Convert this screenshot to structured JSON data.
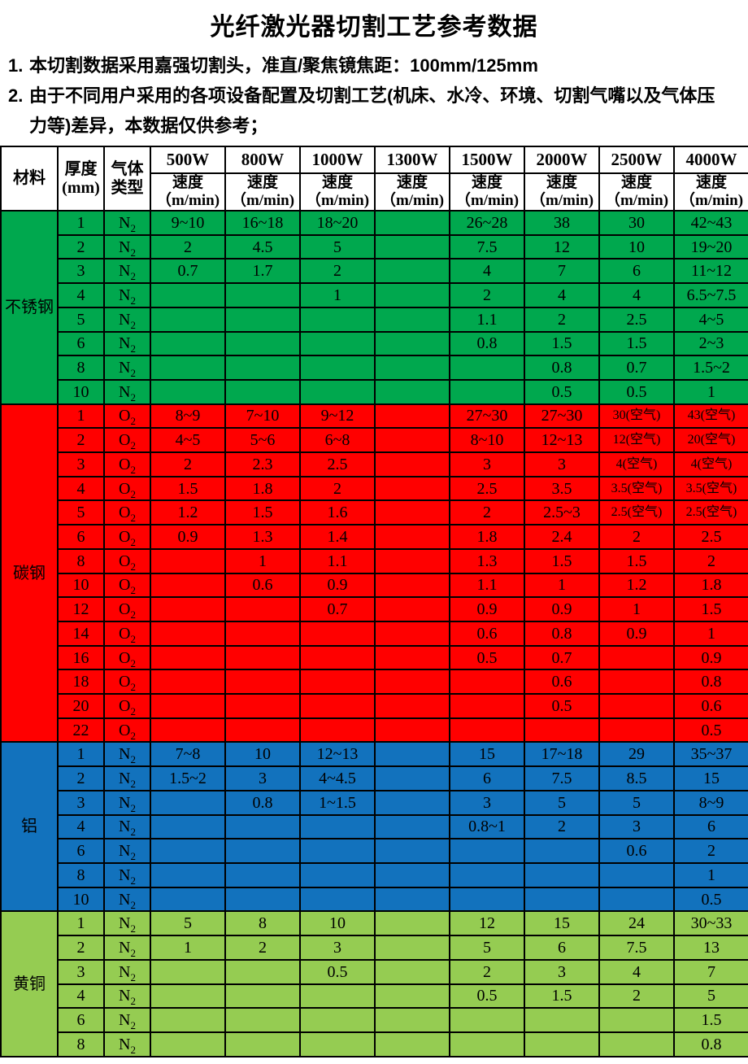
{
  "title": "光纤激光器切割工艺参考数据",
  "notes": [
    {
      "num": "1.",
      "lines": [
        "本切割数据采用嘉强切割头，准直/聚焦镜焦距：100mm/125mm"
      ]
    },
    {
      "num": "2.",
      "lines": [
        "由于不同用户采用的各项设备配置及切割工艺(机床、水冷、环境、切割气嘴以及气体压",
        "力等)差异，本数据仅供参考；"
      ]
    }
  ],
  "table": {
    "corner": {
      "material": "材料",
      "thickness_lines": [
        "厚度",
        "(mm)"
      ],
      "gas_lines": [
        "气体",
        "类型"
      ]
    },
    "powers": [
      "500W",
      "800W",
      "1000W",
      "1300W",
      "1500W",
      "2000W",
      "2500W",
      "4000W"
    ],
    "speed_label_lines": [
      "速度",
      "（m/min)"
    ],
    "section_colors": {
      "stainless": "#00A84E",
      "carbon": "#FF0000",
      "aluminum": "#1272BD",
      "brass": "#95CC52"
    },
    "sections": [
      {
        "material": "不锈钢",
        "color": "#00A84E",
        "gas": "N2",
        "rows": [
          {
            "thickness": "1",
            "values": [
              "9~10",
              "16~18",
              "18~20",
              "",
              "26~28",
              "38",
              "30",
              "42~43"
            ]
          },
          {
            "thickness": "2",
            "values": [
              "2",
              "4.5",
              "5",
              "",
              "7.5",
              "12",
              "10",
              "19~20"
            ]
          },
          {
            "thickness": "3",
            "values": [
              "0.7",
              "1.7",
              "2",
              "",
              "4",
              "7",
              "6",
              "11~12"
            ]
          },
          {
            "thickness": "4",
            "values": [
              "",
              "",
              "1",
              "",
              "2",
              "4",
              "4",
              "6.5~7.5"
            ]
          },
          {
            "thickness": "5",
            "values": [
              "",
              "",
              "",
              "",
              "1.1",
              "2",
              "2.5",
              "4~5"
            ]
          },
          {
            "thickness": "6",
            "values": [
              "",
              "",
              "",
              "",
              "0.8",
              "1.5",
              "1.5",
              "2~3"
            ]
          },
          {
            "thickness": "8",
            "values": [
              "",
              "",
              "",
              "",
              "",
              "0.8",
              "0.7",
              "1.5~2"
            ]
          },
          {
            "thickness": "10",
            "values": [
              "",
              "",
              "",
              "",
              "",
              "0.5",
              "0.5",
              "1"
            ]
          }
        ]
      },
      {
        "material": "碳钢",
        "color": "#FF0000",
        "gas": "O2",
        "rows": [
          {
            "thickness": "1",
            "values": [
              "8~9",
              "7~10",
              "9~12",
              "",
              "27~30",
              "27~30",
              "30(空气)",
              "43(空气)"
            ]
          },
          {
            "thickness": "2",
            "values": [
              "4~5",
              "5~6",
              "6~8",
              "",
              "8~10",
              "12~13",
              "12(空气)",
              "20(空气)"
            ]
          },
          {
            "thickness": "3",
            "values": [
              "2",
              "2.3",
              "2.5",
              "",
              "3",
              "3",
              "4(空气)",
              "4(空气)"
            ]
          },
          {
            "thickness": "4",
            "values": [
              "1.5",
              "1.8",
              "2",
              "",
              "2.5",
              "3.5",
              "3.5(空气)",
              "3.5(空气)"
            ]
          },
          {
            "thickness": "5",
            "values": [
              "1.2",
              "1.5",
              "1.6",
              "",
              "2",
              "2.5~3",
              "2.5(空气)",
              "2.5(空气)"
            ]
          },
          {
            "thickness": "6",
            "values": [
              "0.9",
              "1.3",
              "1.4",
              "",
              "1.8",
              "2.4",
              "2",
              "2.5"
            ]
          },
          {
            "thickness": "8",
            "values": [
              "",
              "1",
              "1.1",
              "",
              "1.3",
              "1.5",
              "1.5",
              "2"
            ]
          },
          {
            "thickness": "10",
            "values": [
              "",
              "0.6",
              "0.9",
              "",
              "1.1",
              "1",
              "1.2",
              "1.8"
            ]
          },
          {
            "thickness": "12",
            "values": [
              "",
              "",
              "0.7",
              "",
              "0.9",
              "0.9",
              "1",
              "1.5"
            ]
          },
          {
            "thickness": "14",
            "values": [
              "",
              "",
              "",
              "",
              "0.6",
              "0.8",
              "0.9",
              "1"
            ]
          },
          {
            "thickness": "16",
            "values": [
              "",
              "",
              "",
              "",
              "0.5",
              "0.7",
              "",
              "0.9"
            ]
          },
          {
            "thickness": "18",
            "values": [
              "",
              "",
              "",
              "",
              "",
              "0.6",
              "",
              "0.8"
            ]
          },
          {
            "thickness": "20",
            "values": [
              "",
              "",
              "",
              "",
              "",
              "0.5",
              "",
              "0.6"
            ]
          },
          {
            "thickness": "22",
            "values": [
              "",
              "",
              "",
              "",
              "",
              "",
              "",
              "0.5"
            ]
          }
        ]
      },
      {
        "material": "铝",
        "color": "#1272BD",
        "gas": "N2",
        "rows": [
          {
            "thickness": "1",
            "values": [
              "7~8",
              "10",
              "12~13",
              "",
              "15",
              "17~18",
              "29",
              "35~37"
            ]
          },
          {
            "thickness": "2",
            "values": [
              "1.5~2",
              "3",
              "4~4.5",
              "",
              "6",
              "7.5",
              "8.5",
              "15"
            ]
          },
          {
            "thickness": "3",
            "values": [
              "",
              "0.8",
              "1~1.5",
              "",
              "3",
              "5",
              "5",
              "8~9"
            ]
          },
          {
            "thickness": "4",
            "values": [
              "",
              "",
              "",
              "",
              "0.8~1",
              "2",
              "3",
              "6"
            ]
          },
          {
            "thickness": "6",
            "values": [
              "",
              "",
              "",
              "",
              "",
              "",
              "0.6",
              "2"
            ]
          },
          {
            "thickness": "8",
            "values": [
              "",
              "",
              "",
              "",
              "",
              "",
              "",
              "1"
            ]
          },
          {
            "thickness": "10",
            "values": [
              "",
              "",
              "",
              "",
              "",
              "",
              "",
              "0.5"
            ]
          }
        ]
      },
      {
        "material": "黄铜",
        "color": "#95CC52",
        "gas": "N2",
        "rows": [
          {
            "thickness": "1",
            "values": [
              "5",
              "8",
              "10",
              "",
              "12",
              "15",
              "24",
              "30~33"
            ]
          },
          {
            "thickness": "2",
            "values": [
              "1",
              "2",
              "3",
              "",
              "5",
              "6",
              "7.5",
              "13"
            ]
          },
          {
            "thickness": "3",
            "values": [
              "",
              "",
              "0.5",
              "",
              "2",
              "3",
              "4",
              "7"
            ]
          },
          {
            "thickness": "4",
            "values": [
              "",
              "",
              "",
              "",
              "0.5",
              "1.5",
              "2",
              "5"
            ]
          },
          {
            "thickness": "6",
            "values": [
              "",
              "",
              "",
              "",
              "",
              "",
              "",
              "1.5"
            ]
          },
          {
            "thickness": "8",
            "values": [
              "",
              "",
              "",
              "",
              "",
              "",
              "",
              "0.8"
            ]
          }
        ]
      }
    ]
  }
}
